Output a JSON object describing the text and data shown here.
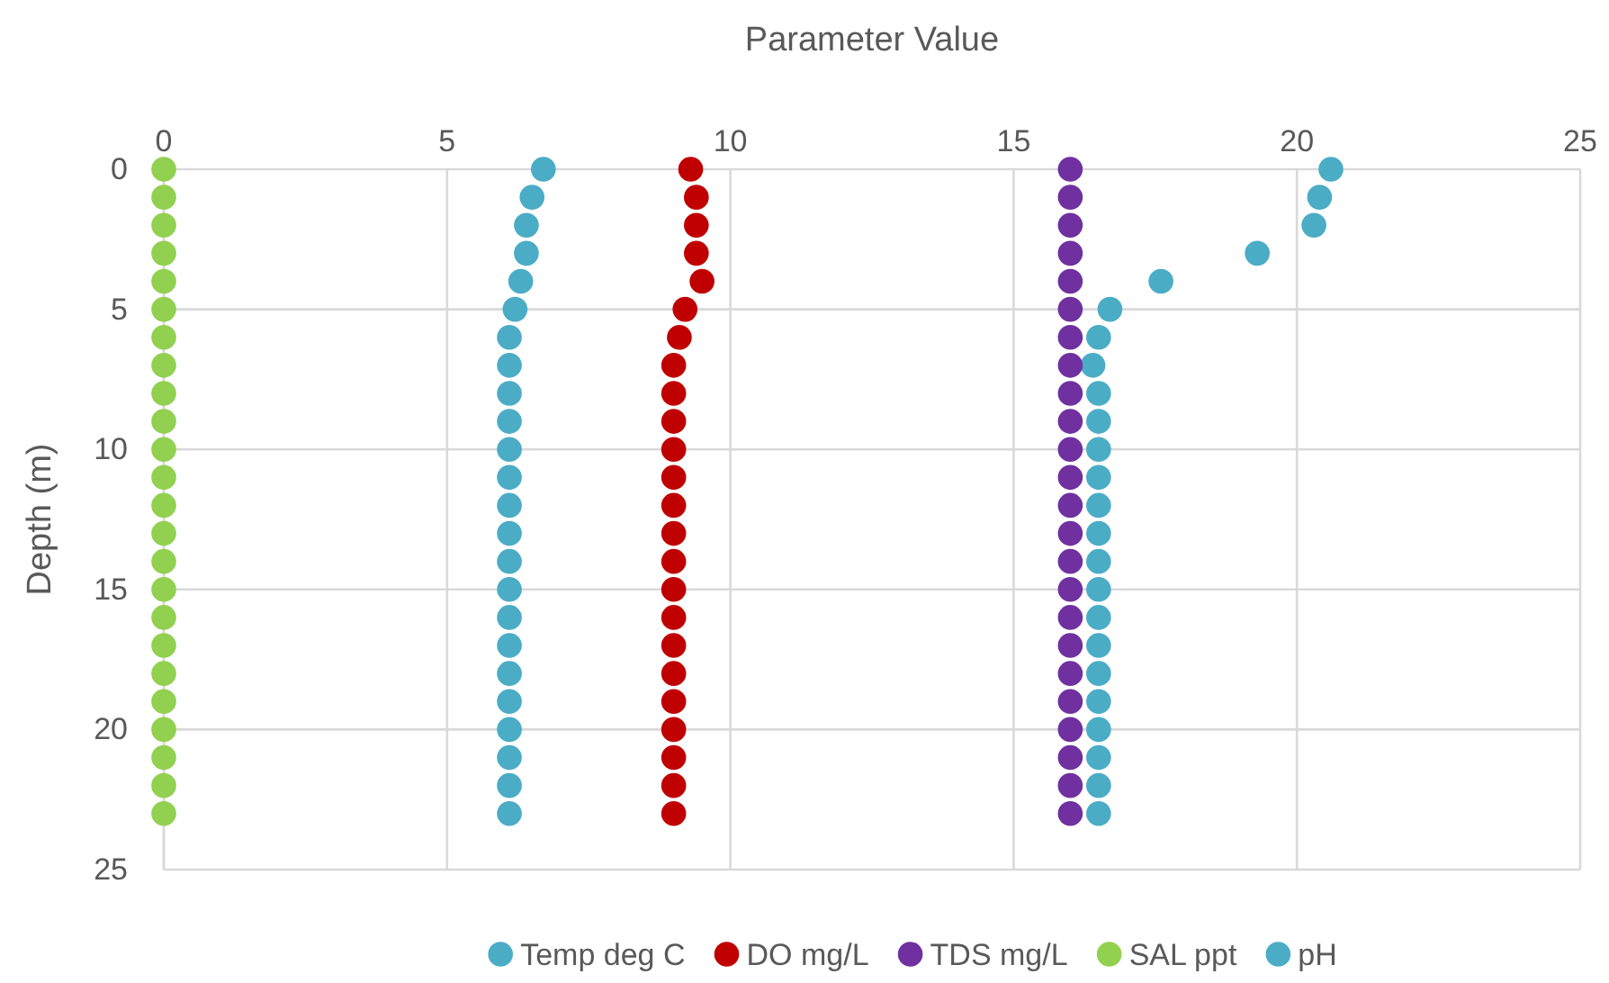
{
  "chart_data": {
    "type": "scatter",
    "xlabel": "Parameter Value",
    "ylabel": "Depth (m)",
    "xlim": [
      0,
      25
    ],
    "xticks": [
      0,
      5,
      10,
      15,
      20,
      25
    ],
    "ylim": [
      25,
      0
    ],
    "yticks": [
      0,
      5,
      10,
      15,
      20,
      25
    ],
    "grid": true,
    "legend": "bottom",
    "marker": "circle",
    "series": [
      {
        "name": "Temp deg C",
        "color": "#4bacc6",
        "x": [
          20.6,
          20.4,
          20.3,
          19.3,
          17.6,
          16.7,
          16.5,
          16.4,
          16.5,
          16.5,
          16.5,
          16.5,
          16.5,
          16.5,
          16.5,
          16.5,
          16.5,
          16.5,
          16.5,
          16.5,
          16.5,
          16.5,
          16.5,
          16.5
        ],
        "values": [
          0,
          1,
          2,
          3,
          4,
          5,
          6,
          7,
          8,
          9,
          10,
          11,
          12,
          13,
          14,
          15,
          16,
          17,
          18,
          19,
          20,
          21,
          22,
          23
        ]
      },
      {
        "name": "DO mg/L",
        "color": "#c00000",
        "x": [
          9.3,
          9.4,
          9.4,
          9.4,
          9.5,
          9.2,
          9.1,
          9.0,
          9.0,
          9.0,
          9.0,
          9.0,
          9.0,
          9.0,
          9.0,
          9.0,
          9.0,
          9.0,
          9.0,
          9.0,
          9.0,
          9.0,
          9.0,
          9.0
        ],
        "values": [
          0,
          1,
          2,
          3,
          4,
          5,
          6,
          7,
          8,
          9,
          10,
          11,
          12,
          13,
          14,
          15,
          16,
          17,
          18,
          19,
          20,
          21,
          22,
          23
        ]
      },
      {
        "name": "TDS mg/L",
        "color": "#7030a0",
        "x": [
          16,
          16,
          16,
          16,
          16,
          16,
          16,
          16,
          16,
          16,
          16,
          16,
          16,
          16,
          16,
          16,
          16,
          16,
          16,
          16,
          16,
          16,
          16,
          16
        ],
        "values": [
          0,
          1,
          2,
          3,
          4,
          5,
          6,
          7,
          8,
          9,
          10,
          11,
          12,
          13,
          14,
          15,
          16,
          17,
          18,
          19,
          20,
          21,
          22,
          23
        ]
      },
      {
        "name": "SAL ppt",
        "color": "#92d050",
        "x": [
          0,
          0,
          0,
          0,
          0,
          0,
          0,
          0,
          0,
          0,
          0,
          0,
          0,
          0,
          0,
          0,
          0,
          0,
          0,
          0,
          0,
          0,
          0,
          0
        ],
        "values": [
          0,
          1,
          2,
          3,
          4,
          5,
          6,
          7,
          8,
          9,
          10,
          11,
          12,
          13,
          14,
          15,
          16,
          17,
          18,
          19,
          20,
          21,
          22,
          23
        ]
      },
      {
        "name": "pH",
        "color": "#4bacc6",
        "x": [
          6.7,
          6.5,
          6.4,
          6.4,
          6.3,
          6.2,
          6.1,
          6.1,
          6.1,
          6.1,
          6.1,
          6.1,
          6.1,
          6.1,
          6.1,
          6.1,
          6.1,
          6.1,
          6.1,
          6.1,
          6.1,
          6.1,
          6.1,
          6.1
        ],
        "values": [
          0,
          1,
          2,
          3,
          4,
          5,
          6,
          7,
          8,
          9,
          10,
          11,
          12,
          13,
          14,
          15,
          16,
          17,
          18,
          19,
          20,
          21,
          22,
          23
        ]
      }
    ]
  }
}
